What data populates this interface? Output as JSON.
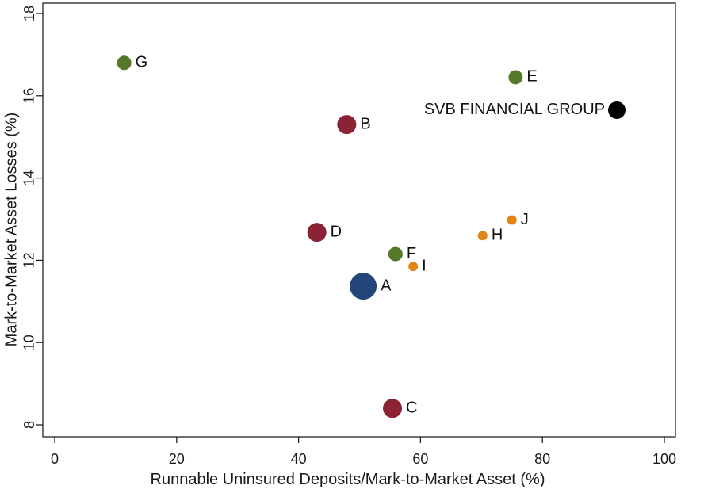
{
  "chart_data": {
    "type": "scatter",
    "title": "",
    "xlabel": "Runnable Uninsured Deposits/Mark-to-Market Asset (%)",
    "ylabel": "Mark-to-Market Asset Losses (%)",
    "xlim": [
      0,
      100
    ],
    "ylim": [
      8,
      18
    ],
    "x_ticks": [
      0,
      20,
      40,
      60,
      80,
      100
    ],
    "y_ticks": [
      8,
      10,
      12,
      14,
      16,
      18
    ],
    "grid": false,
    "points": [
      {
        "label": "G",
        "x": 11.4,
        "y": 16.8,
        "color": "#56782b",
        "size": "medium"
      },
      {
        "label": "E",
        "x": 75.6,
        "y": 16.45,
        "color": "#56782b",
        "size": "medium"
      },
      {
        "label": "SVB FINANCIAL GROUP",
        "x": 92.2,
        "y": 15.65,
        "color": "#000000",
        "size": "medium-large",
        "label_side": "left"
      },
      {
        "label": "B",
        "x": 47.9,
        "y": 15.3,
        "color": "#8c2334",
        "size": "large"
      },
      {
        "label": "J",
        "x": 75.0,
        "y": 12.98,
        "color": "#e08414",
        "size": "small"
      },
      {
        "label": "D",
        "x": 43.0,
        "y": 12.68,
        "color": "#8c2334",
        "size": "large"
      },
      {
        "label": "H",
        "x": 70.2,
        "y": 12.6,
        "color": "#e08414",
        "size": "small"
      },
      {
        "label": "F",
        "x": 55.9,
        "y": 12.15,
        "color": "#56782b",
        "size": "medium"
      },
      {
        "label": "I",
        "x": 58.8,
        "y": 11.85,
        "color": "#e08414",
        "size": "small"
      },
      {
        "label": "A",
        "x": 50.6,
        "y": 11.37,
        "color": "#24457a",
        "size": "xlarge"
      },
      {
        "label": "C",
        "x": 55.4,
        "y": 8.4,
        "color": "#8c2334",
        "size": "large"
      }
    ]
  }
}
